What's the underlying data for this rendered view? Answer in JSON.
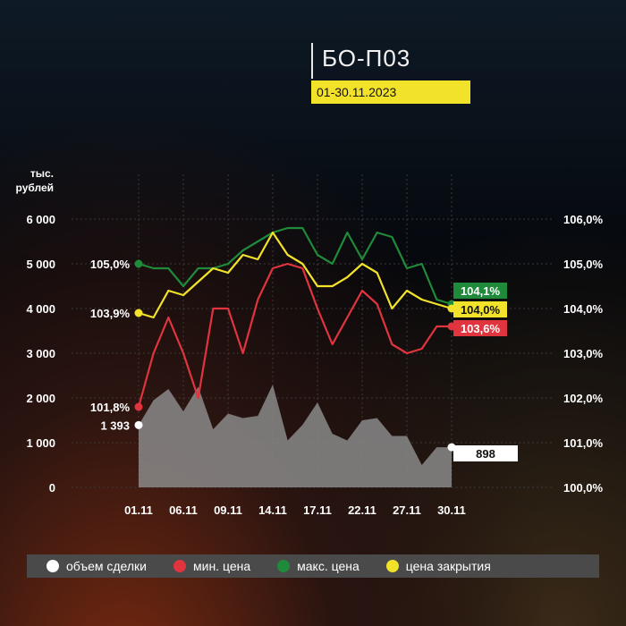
{
  "header": {
    "title": "БО-П03",
    "period": "01-30.11.2023"
  },
  "unit_label_line1": "тыс.",
  "unit_label_line2": "рублей",
  "colors": {
    "volume": "#8a8a8a",
    "min": "#e0343f",
    "max": "#1f8a3a",
    "close": "#f2e22a",
    "grid": "#3a3a3a"
  },
  "legend": [
    {
      "label": "объем сделки",
      "color": "#ffffff"
    },
    {
      "label": "мин. цена",
      "color": "#e0343f"
    },
    {
      "label": "макс. цена",
      "color": "#1f8a3a"
    },
    {
      "label": "цена закрытия",
      "color": "#f2e22a"
    }
  ],
  "chart_data": {
    "type": "line",
    "x": [
      "01.11",
      "02.11",
      "03.11",
      "06.11",
      "07.11",
      "08.11",
      "09.11",
      "10.11",
      "13.11",
      "14.11",
      "15.11",
      "16.11",
      "17.11",
      "20.11",
      "21.11",
      "22.11",
      "23.11",
      "24.11",
      "27.11",
      "28.11",
      "29.11",
      "30.11"
    ],
    "x_tick_labels": [
      "01.11",
      "06.11",
      "09.11",
      "14.11",
      "17.11",
      "22.11",
      "27.11",
      "30.11"
    ],
    "left_axis": {
      "ylim": [
        0,
        6000
      ],
      "ticks": [
        "0",
        "1 000",
        "2 000",
        "3 000",
        "4 000",
        "5 000",
        "6 000"
      ]
    },
    "right_axis": {
      "ylim": [
        100.0,
        106.0
      ],
      "ticks": [
        "100,0%",
        "101,0%",
        "102,0%",
        "103,0%",
        "104,0%",
        "105,0%",
        "106,0%"
      ]
    },
    "series": [
      {
        "name": "объем сделки",
        "axis": "left",
        "style": "area",
        "values": [
          1393,
          1950,
          2200,
          1700,
          2250,
          1300,
          1650,
          1550,
          1600,
          2300,
          1050,
          1400,
          1900,
          1200,
          1050,
          1500,
          1550,
          1150,
          1150,
          500,
          898,
          898
        ]
      },
      {
        "name": "мин. цена",
        "axis": "right",
        "values": [
          101.8,
          103.0,
          103.8,
          103.0,
          102.0,
          104.0,
          104.0,
          103.0,
          104.2,
          104.9,
          105.0,
          104.9,
          104.0,
          103.2,
          103.8,
          104.4,
          104.1,
          103.2,
          103.0,
          103.1,
          103.6,
          103.6
        ]
      },
      {
        "name": "макс. цена",
        "axis": "right",
        "values": [
          105.0,
          104.9,
          104.9,
          104.5,
          104.9,
          104.9,
          105.0,
          105.3,
          105.5,
          105.7,
          105.8,
          105.8,
          105.2,
          105.0,
          105.7,
          105.1,
          105.7,
          105.6,
          104.9,
          105.0,
          104.2,
          104.1
        ]
      },
      {
        "name": "цена закрытия",
        "axis": "right",
        "values": [
          103.9,
          103.8,
          104.4,
          104.3,
          104.6,
          104.9,
          104.8,
          105.2,
          105.1,
          105.7,
          105.2,
          105.0,
          104.5,
          104.5,
          104.7,
          105.0,
          104.8,
          104.0,
          104.4,
          104.2,
          104.1,
          104.0
        ]
      }
    ],
    "start_labels": {
      "volume": "1 393",
      "min": "101,8%",
      "max": "105,0%",
      "close": "103,9%"
    },
    "end_labels": {
      "volume": "898",
      "max": "104,1%",
      "close": "104,0%",
      "min": "103,6%"
    }
  }
}
